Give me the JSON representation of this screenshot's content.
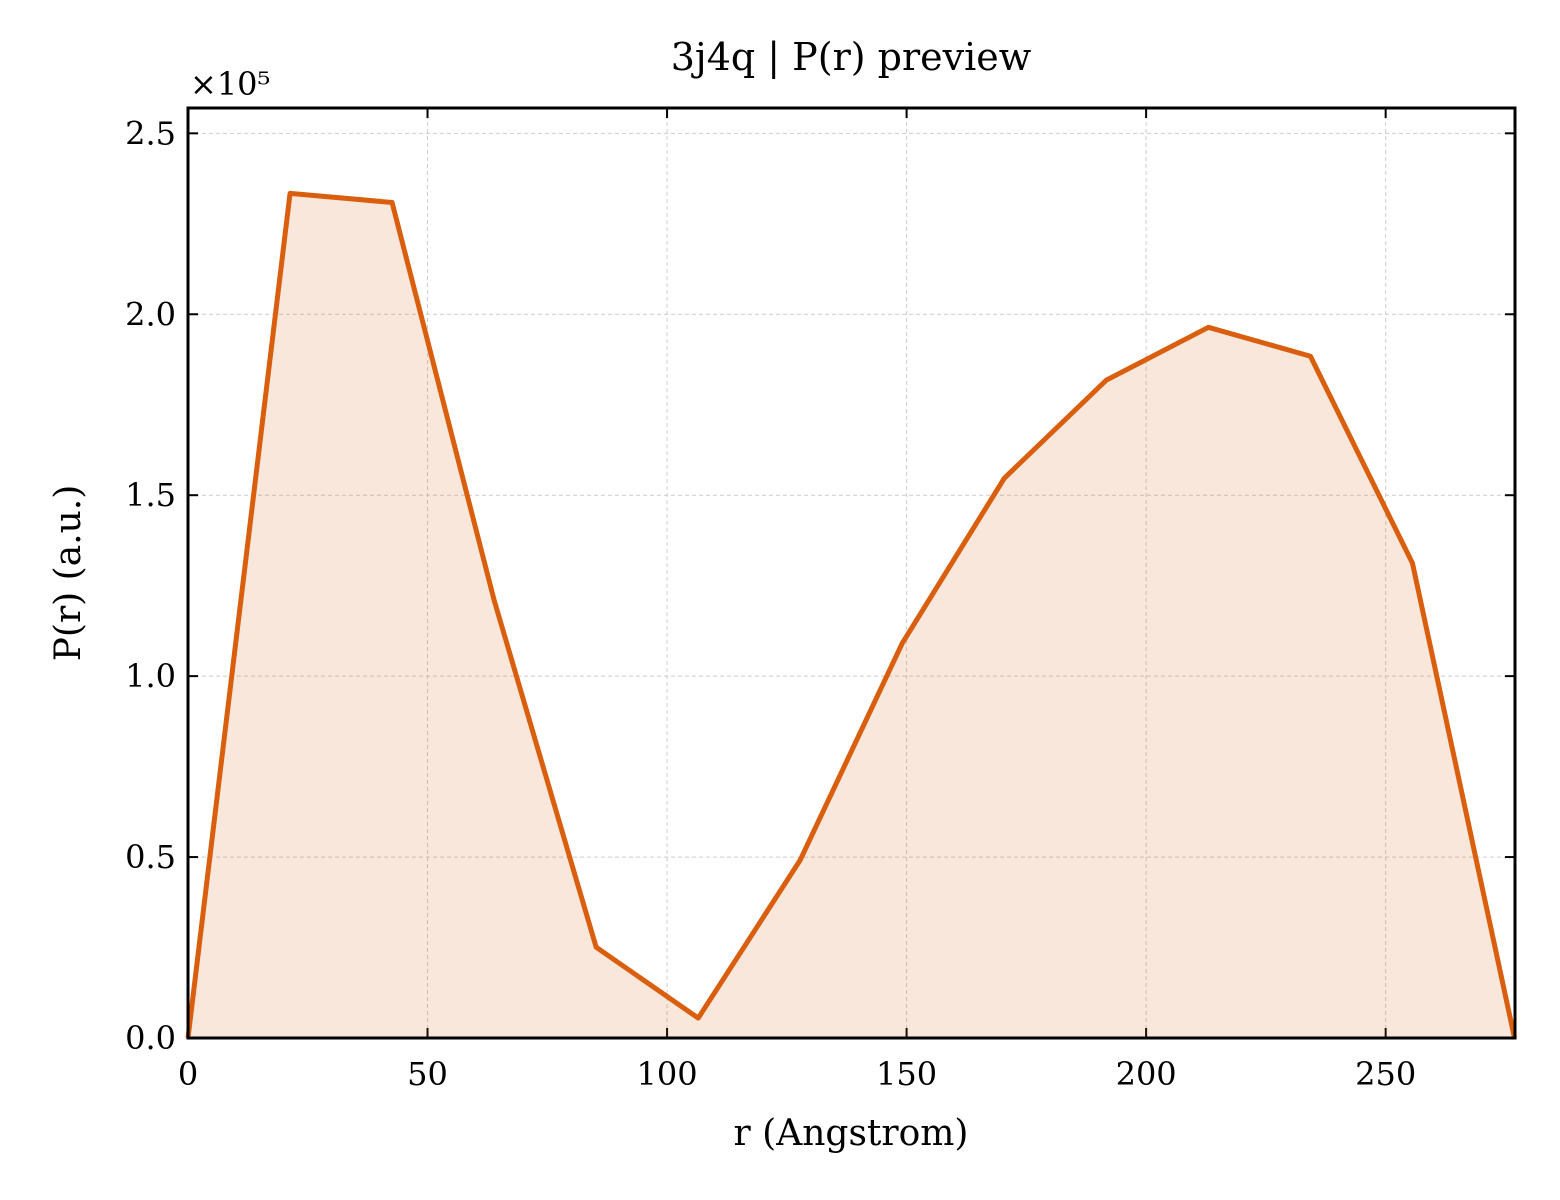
{
  "chart_data": {
    "type": "area-line",
    "title": "3j4q | P(r) preview",
    "xlabel": "r (Angstrom)",
    "ylabel": "P(r) (a.u.)",
    "y_offset_label": "×10⁵",
    "x": [
      0,
      21.3,
      42.6,
      63.9,
      85.2,
      106.5,
      127.8,
      149.1,
      170.4,
      191.7,
      213,
      234.3,
      255.6,
      276.9
    ],
    "series": [
      {
        "color": "#d95f0e",
        "values": [
          0,
          233400,
          230900,
          121000,
          25100,
          5500,
          49200,
          109100,
          154700,
          181800,
          196400,
          188400,
          131200,
          0
        ]
      }
    ],
    "xlim": [
      0,
      277
    ],
    "xticks": [
      0,
      50,
      100,
      150,
      200,
      250
    ],
    "ylim": [
      0,
      257000
    ],
    "yticks": [
      {
        "value": 0,
        "label": "0.0"
      },
      {
        "value": 50000,
        "label": "0.5"
      },
      {
        "value": 100000,
        "label": "1.0"
      },
      {
        "value": 150000,
        "label": "1.5"
      },
      {
        "value": 200000,
        "label": "2.0"
      },
      {
        "value": 250000,
        "label": "2.5"
      }
    ],
    "grid": true
  }
}
